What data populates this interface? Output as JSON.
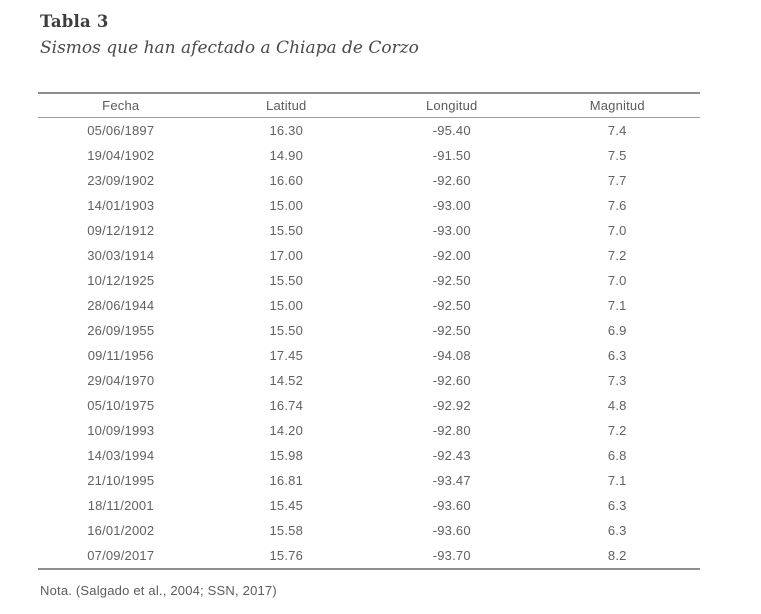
{
  "heading": {
    "label": "Tabla 3",
    "title": "Sismos que han afectado a Chiapa de Corzo"
  },
  "table": {
    "columns": [
      "Fecha",
      "Latitud",
      "Longitud",
      "Magnitud"
    ],
    "rows": [
      {
        "fecha": "05/06/1897",
        "latitud": "16.30",
        "longitud": "-95.40",
        "magnitud": "7.4"
      },
      {
        "fecha": "19/04/1902",
        "latitud": "14.90",
        "longitud": "-91.50",
        "magnitud": "7.5"
      },
      {
        "fecha": "23/09/1902",
        "latitud": "16.60",
        "longitud": "-92.60",
        "magnitud": "7.7"
      },
      {
        "fecha": "14/01/1903",
        "latitud": "15.00",
        "longitud": "-93.00",
        "magnitud": "7.6"
      },
      {
        "fecha": "09/12/1912",
        "latitud": "15.50",
        "longitud": "-93.00",
        "magnitud": "7.0"
      },
      {
        "fecha": "30/03/1914",
        "latitud": "17.00",
        "longitud": "-92.00",
        "magnitud": "7.2"
      },
      {
        "fecha": "10/12/1925",
        "latitud": "15.50",
        "longitud": "-92.50",
        "magnitud": "7.0"
      },
      {
        "fecha": "28/06/1944",
        "latitud": "15.00",
        "longitud": "-92.50",
        "magnitud": "7.1"
      },
      {
        "fecha": "26/09/1955",
        "latitud": "15.50",
        "longitud": "-92.50",
        "magnitud": "6.9"
      },
      {
        "fecha": "09/11/1956",
        "latitud": "17.45",
        "longitud": "-94.08",
        "magnitud": "6.3"
      },
      {
        "fecha": "29/04/1970",
        "latitud": "14.52",
        "longitud": "-92.60",
        "magnitud": "7.3"
      },
      {
        "fecha": "05/10/1975",
        "latitud": "16.74",
        "longitud": "-92.92",
        "magnitud": "4.8"
      },
      {
        "fecha": "10/09/1993",
        "latitud": "14.20",
        "longitud": "-92.80",
        "magnitud": "7.2"
      },
      {
        "fecha": "14/03/1994",
        "latitud": "15.98",
        "longitud": "-92.43",
        "magnitud": "6.8"
      },
      {
        "fecha": "21/10/1995",
        "latitud": "16.81",
        "longitud": "-93.47",
        "magnitud": "7.1"
      },
      {
        "fecha": "18/11/2001",
        "latitud": "15.45",
        "longitud": "-93.60",
        "magnitud": "6.3"
      },
      {
        "fecha": "16/01/2002",
        "latitud": "15.58",
        "longitud": "-93.60",
        "magnitud": "6.3"
      },
      {
        "fecha": "07/09/2017",
        "latitud": "15.76",
        "longitud": "-93.70",
        "magnitud": "8.2"
      }
    ]
  },
  "note": "Nota. (Salgado et al., 2004; SSN, 2017)",
  "colors": {
    "title_text": "#3d3d3d",
    "body_text": "#616161",
    "rule": "#8e8e8e",
    "background": "#ffffff"
  }
}
